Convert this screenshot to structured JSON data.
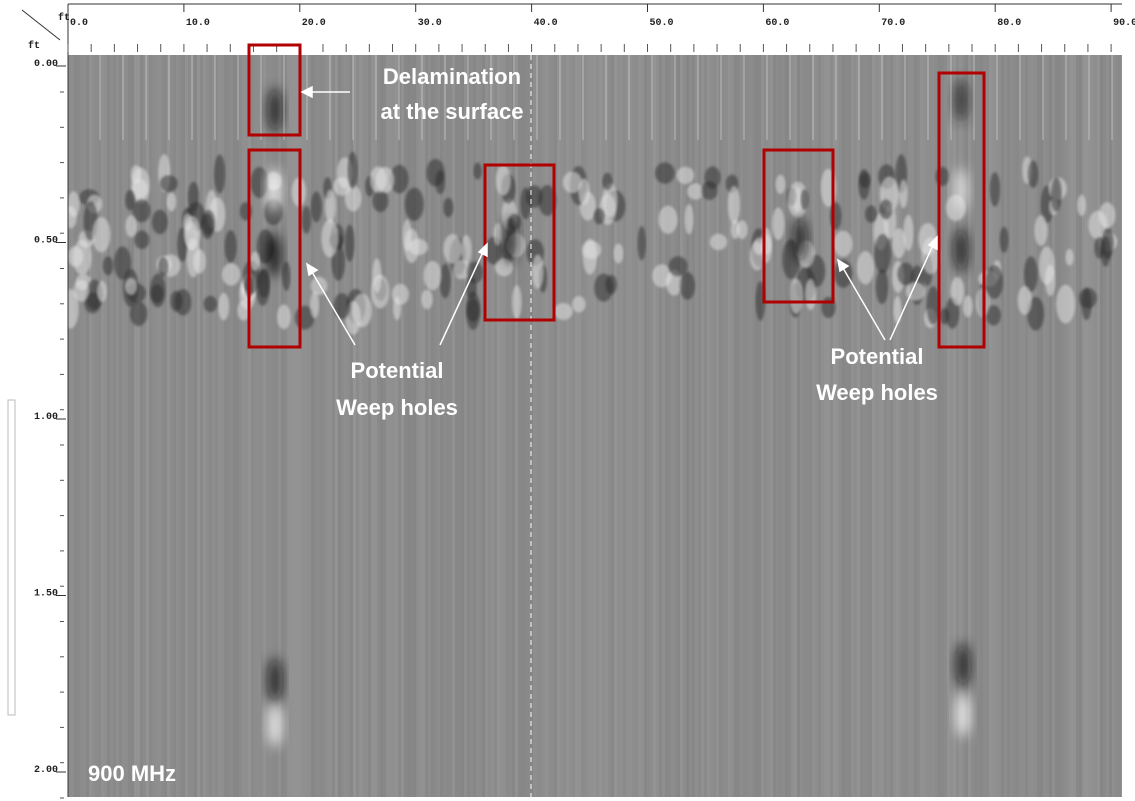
{
  "x_axis": {
    "unit": "ft",
    "labels": [
      "0.0",
      "10.0",
      "20.0",
      "30.0",
      "40.0",
      "50.0",
      "60.0",
      "70.0",
      "80.0",
      "90.0"
    ]
  },
  "y_axis": {
    "unit": "ft",
    "labels": [
      "0.00",
      "0.50",
      "1.00",
      "1.50",
      "2.00"
    ]
  },
  "annotations": [
    {
      "lines": [
        "Delamination",
        "at the surface"
      ]
    },
    {
      "lines": [
        "Potential",
        "Weep holes"
      ]
    },
    {
      "lines": [
        "Potential",
        "Weep holes"
      ]
    }
  ],
  "frequency_label": "900 MHz"
}
